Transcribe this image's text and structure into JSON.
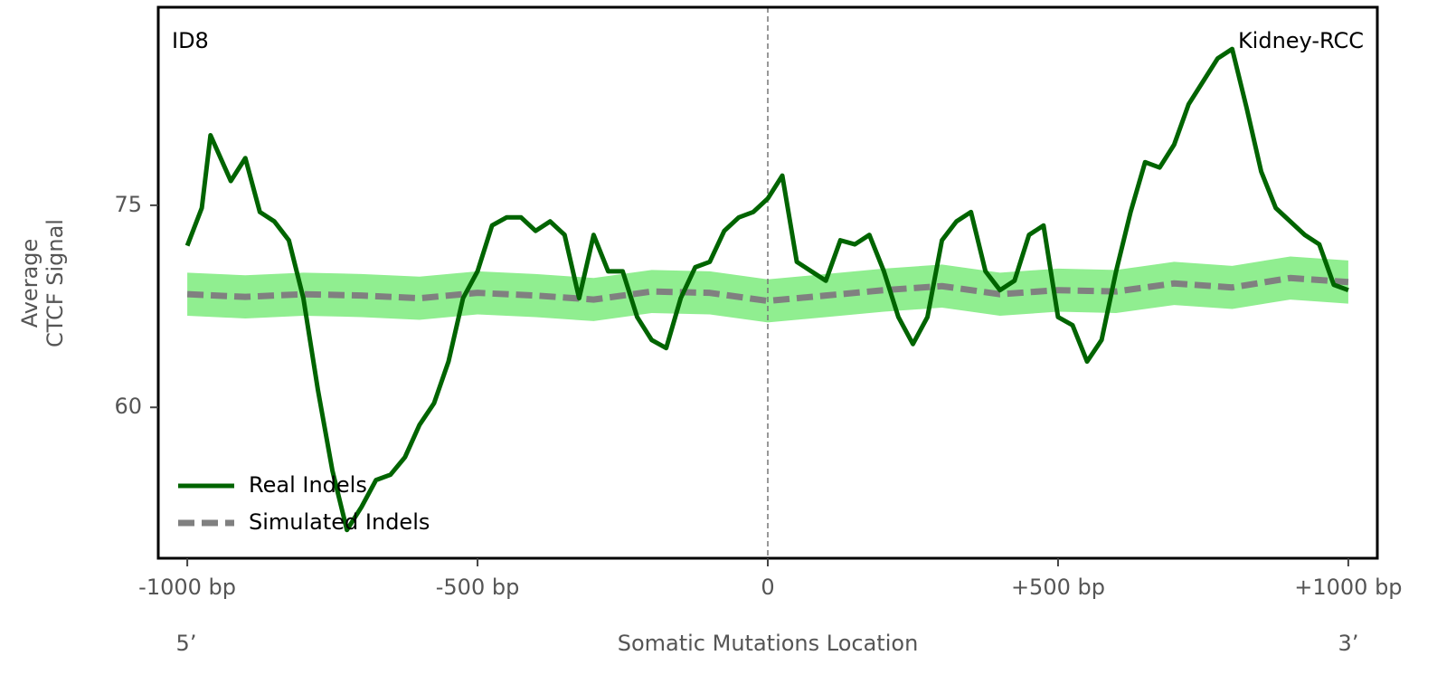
{
  "chart_data": {
    "type": "line",
    "corner_left": "ID8",
    "corner_right": "Kidney-RCC",
    "ylabel": [
      "Average",
      "CTCF Signal"
    ],
    "xlabel": "Somatic Mutations Location",
    "x_start_label": "5’",
    "x_end_label": "3’",
    "xlim": [
      -1050,
      1050
    ],
    "ylim": [
      48.8,
      89.7
    ],
    "xticks": [
      {
        "value": -1000,
        "label": "-1000 bp"
      },
      {
        "value": -500,
        "label": "-500 bp"
      },
      0,
      {
        "value": 500,
        "label": "+500 bp"
      },
      {
        "value": 1000,
        "label": "+1000 bp"
      }
    ],
    "yticks": [
      60,
      75
    ],
    "vline": 0,
    "legend": "lower left",
    "series": [
      {
        "name": "Real Indels",
        "color": "#006400",
        "style": "solid",
        "x": [
          -1000,
          -975,
          -960,
          -925,
          -900,
          -875,
          -850,
          -825,
          -800,
          -775,
          -750,
          -725,
          -700,
          -675,
          -650,
          -625,
          -600,
          -575,
          -550,
          -525,
          -500,
          -475,
          -450,
          -425,
          -400,
          -375,
          -350,
          -325,
          -300,
          -275,
          -250,
          -225,
          -200,
          -175,
          -150,
          -125,
          -100,
          -75,
          -50,
          -25,
          0,
          25,
          50,
          75,
          100,
          125,
          150,
          175,
          200,
          225,
          250,
          275,
          300,
          325,
          350,
          375,
          400,
          425,
          450,
          475,
          500,
          525,
          550,
          575,
          600,
          625,
          650,
          675,
          700,
          725,
          750,
          775,
          800,
          825,
          850,
          875,
          900,
          925,
          950,
          975,
          1000
        ],
        "values": [
          72.0,
          74.8,
          80.2,
          76.8,
          78.5,
          74.5,
          73.8,
          72.4,
          68.1,
          61.3,
          55.3,
          50.9,
          52.6,
          54.6,
          55.0,
          56.3,
          58.7,
          60.3,
          63.4,
          68.1,
          70.1,
          73.5,
          74.1,
          74.1,
          73.1,
          73.8,
          72.8,
          68.1,
          72.8,
          70.1,
          70.1,
          66.7,
          65.0,
          64.4,
          68.1,
          70.4,
          70.8,
          73.1,
          74.1,
          74.5,
          75.5,
          77.2,
          70.8,
          70.1,
          69.4,
          72.4,
          72.1,
          72.8,
          70.1,
          66.7,
          64.7,
          66.7,
          72.4,
          73.8,
          74.5,
          70.1,
          68.7,
          69.4,
          72.8,
          73.5,
          66.7,
          66.1,
          63.4,
          65.0,
          70.1,
          74.5,
          78.2,
          77.8,
          79.5,
          82.5,
          84.2,
          85.9,
          86.6,
          82.2,
          77.5,
          74.8,
          73.8,
          72.8,
          72.1,
          69.1,
          68.7
        ]
      },
      {
        "name": "Simulated Indels",
        "color": "#808080",
        "style": "dashed",
        "band_color": "#90ee90",
        "x": [
          -1000,
          -900,
          -800,
          -700,
          -600,
          -500,
          -400,
          -300,
          -200,
          -100,
          0,
          100,
          200,
          300,
          400,
          500,
          600,
          700,
          800,
          900,
          1000
        ],
        "values": [
          68.4,
          68.2,
          68.4,
          68.3,
          68.1,
          68.5,
          68.3,
          68.0,
          68.6,
          68.5,
          67.9,
          68.3,
          68.7,
          69.0,
          68.4,
          68.7,
          68.6,
          69.2,
          68.9,
          69.6,
          69.3
        ],
        "lower": [
          66.8,
          66.6,
          66.8,
          66.7,
          66.5,
          66.9,
          66.7,
          66.4,
          67.0,
          66.9,
          66.3,
          66.7,
          67.1,
          67.4,
          66.8,
          67.1,
          67.0,
          67.6,
          67.3,
          68.0,
          67.7
        ],
        "upper": [
          70.0,
          69.8,
          70.0,
          69.9,
          69.7,
          70.1,
          69.9,
          69.6,
          70.2,
          70.1,
          69.5,
          69.9,
          70.3,
          70.6,
          70.0,
          70.3,
          70.2,
          70.8,
          70.5,
          71.2,
          70.9
        ]
      }
    ]
  }
}
